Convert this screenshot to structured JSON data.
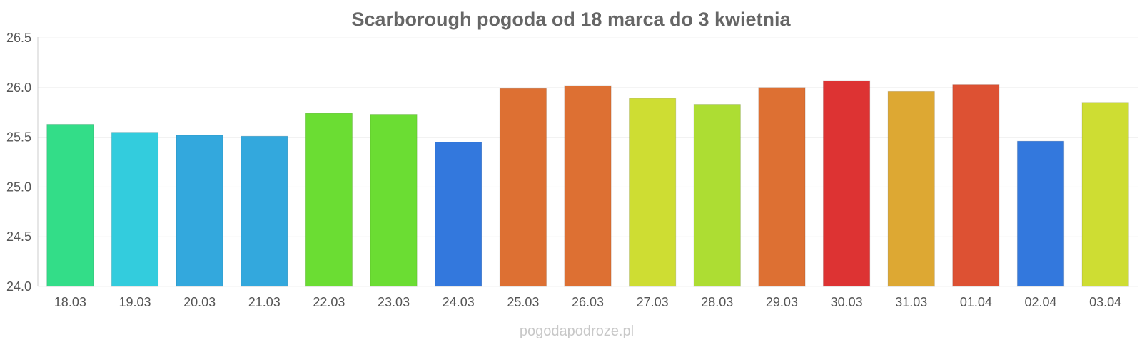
{
  "chart_data": {
    "type": "bar",
    "title": "Scarborough pogoda od 18 marca do 3 kwietnia",
    "xlabel": "",
    "ylabel": "",
    "ylim": [
      24.0,
      26.5
    ],
    "yticks": [
      "24.0",
      "24.5",
      "25.0",
      "25.5",
      "26.0",
      "26.5"
    ],
    "grid": true,
    "categories": [
      "18.03",
      "19.03",
      "20.03",
      "21.03",
      "22.03",
      "23.03",
      "24.03",
      "25.03",
      "26.03",
      "27.03",
      "28.03",
      "29.03",
      "30.03",
      "31.03",
      "01.04",
      "02.04",
      "03.04"
    ],
    "values": [
      25.63,
      25.55,
      25.52,
      25.51,
      25.74,
      25.73,
      25.45,
      25.99,
      26.02,
      25.89,
      25.83,
      26.0,
      26.07,
      25.96,
      26.03,
      25.46,
      25.85
    ],
    "colors": [
      "#33dd88",
      "#33ccdd",
      "#33a8dd",
      "#33a8dd",
      "#6bdd33",
      "#6bdd33",
      "#3378dd",
      "#dd7033",
      "#dd7033",
      "#cedd33",
      "#addd33",
      "#dd7033",
      "#dd3333",
      "#dda833",
      "#dd5133",
      "#3378dd",
      "#cedd33"
    ]
  },
  "watermark": "pogodapodroze.pl"
}
